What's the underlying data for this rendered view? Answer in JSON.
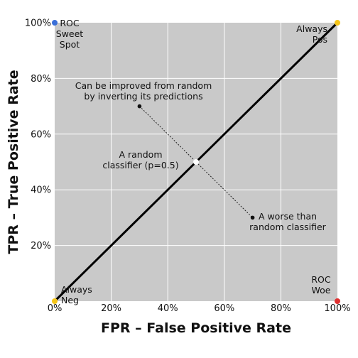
{
  "chart_data": {
    "type": "scatter",
    "title": "",
    "xlabel": "FPR – False Positive Rate",
    "ylabel": "TPR – True Positive Rate",
    "xlim": [
      0,
      1
    ],
    "ylim": [
      0,
      1
    ],
    "grid": true,
    "x_ticks": [
      {
        "value": 0.0,
        "label": "0%"
      },
      {
        "value": 0.2,
        "label": "20%"
      },
      {
        "value": 0.4,
        "label": "40%"
      },
      {
        "value": 0.6,
        "label": "60%"
      },
      {
        "value": 0.8,
        "label": "80%"
      },
      {
        "value": 1.0,
        "label": "100%"
      }
    ],
    "y_ticks": [
      {
        "value": 0.2,
        "label": "20%"
      },
      {
        "value": 0.4,
        "label": "40%"
      },
      {
        "value": 0.6,
        "label": "60%"
      },
      {
        "value": 0.8,
        "label": "80%"
      },
      {
        "value": 1.0,
        "label": "100%"
      }
    ],
    "diagonal": {
      "from": [
        0,
        0
      ],
      "to": [
        1,
        1
      ]
    },
    "points": [
      {
        "x": 0.0,
        "y": 0.0,
        "color": "#f5c518",
        "label": [
          "Always",
          "Neg"
        ]
      },
      {
        "x": 1.0,
        "y": 1.0,
        "color": "#f5c518",
        "label": [
          "Always",
          "Pos"
        ]
      },
      {
        "x": 0.0,
        "y": 1.0,
        "color": "#3a6fd8",
        "label": [
          "ROC",
          "Sweet",
          "Spot"
        ]
      },
      {
        "x": 1.0,
        "y": 0.0,
        "color": "#e03030",
        "label": [
          "ROC",
          "Woe"
        ]
      },
      {
        "x": 0.5,
        "y": 0.5,
        "color": "#ffffff",
        "label": [
          "A random",
          "classifier (p=0.5)"
        ]
      },
      {
        "x": 0.7,
        "y": 0.3,
        "color": "#111111",
        "label": [
          "A worse than",
          "random classifier"
        ]
      },
      {
        "x": 0.3,
        "y": 0.7,
        "color": "#111111",
        "label": [
          "Can be improved from random",
          "by inverting its predictions"
        ]
      }
    ],
    "reflection_line": {
      "from": [
        0.3,
        0.7
      ],
      "to": [
        0.7,
        0.3
      ]
    }
  }
}
